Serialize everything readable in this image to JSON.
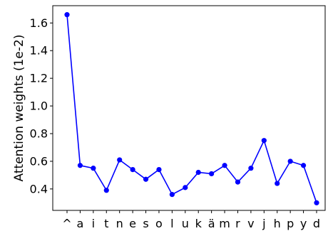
{
  "chart_data": {
    "type": "line",
    "title": "",
    "xlabel": "",
    "ylabel": "Attention weights (1e-2)",
    "categories": [
      "^",
      "a",
      "i",
      "t",
      "n",
      "e",
      "s",
      "o",
      "l",
      "u",
      "k",
      "ä",
      "m",
      "r",
      "v",
      "j",
      "h",
      "p",
      "y",
      "d"
    ],
    "series": [
      {
        "values": [
          1.66,
          0.57,
          0.55,
          0.39,
          0.61,
          0.54,
          0.47,
          0.54,
          0.36,
          0.41,
          0.52,
          0.51,
          0.57,
          0.45,
          0.55,
          0.75,
          0.44,
          0.6,
          0.57,
          0.3
        ],
        "color": "#0000ff"
      }
    ],
    "ylim": [
      0.245,
      1.725
    ],
    "yticks": [
      0.4,
      0.6,
      0.8,
      1.0,
      1.2,
      1.4,
      1.6
    ],
    "ytick_labels": [
      "0.4",
      "0.6",
      "0.8",
      "1.0",
      "1.2",
      "1.4",
      "1.6"
    ],
    "grid": false,
    "legend": "none"
  }
}
